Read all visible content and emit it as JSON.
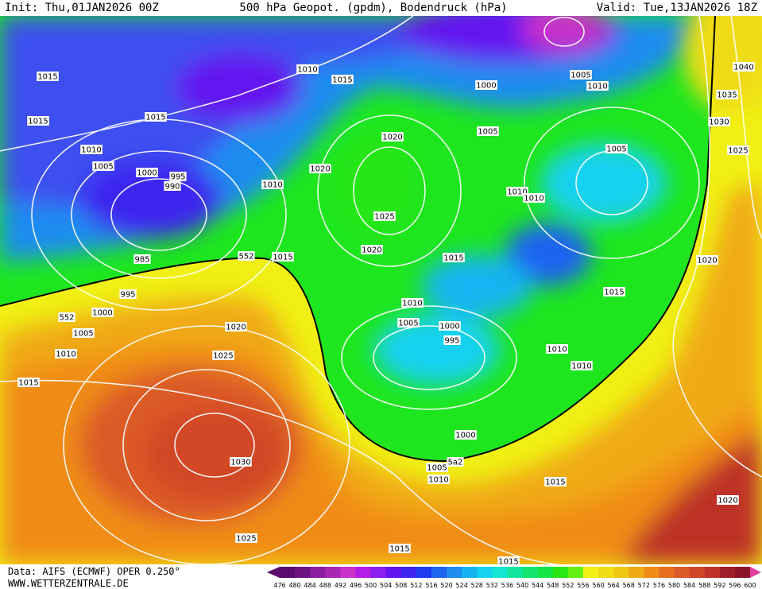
{
  "header": {
    "init": "Init: Thu,01JAN2026 00Z",
    "title": "500 hPa Geopot. (gpdm), Bodendruck (hPa)",
    "valid": "Valid: Tue,13JAN2026 18Z"
  },
  "isobar_labels": [
    "1015",
    "1015",
    "1010",
    "1015",
    "1000",
    "1005",
    "1010",
    "1040",
    "1035",
    "1030",
    "1025",
    "1015",
    "1010",
    "1005",
    "1000",
    "995",
    "990",
    "1020",
    "1005",
    "1005",
    "1020",
    "1010",
    "1010",
    "1010",
    "1025",
    "985",
    "1020",
    "1015",
    "552",
    "1015",
    "1020",
    "995",
    "1015",
    "1010",
    "552",
    "1000",
    "1005",
    "1000",
    "995",
    "1020",
    "1005",
    "1010",
    "1025",
    "1010",
    "1010",
    "1015",
    "1000",
    "1030",
    "1005",
    "5a2",
    "1010",
    "1015",
    "1020",
    "1025",
    "1015",
    "1015"
  ],
  "colorbar": {
    "labels": [
      476,
      480,
      484,
      488,
      492,
      496,
      500,
      504,
      508,
      512,
      516,
      520,
      524,
      528,
      532,
      536,
      540,
      544,
      548,
      552,
      556,
      560,
      564,
      568,
      572,
      576,
      580,
      584,
      588,
      592,
      596,
      600
    ],
    "colors": [
      "#5a0a6e",
      "#6e1482",
      "#8c1ea0",
      "#a828b4",
      "#c832c8",
      "#b41ee6",
      "#8c1ef0",
      "#6414f0",
      "#3c28f0",
      "#1e3cf0",
      "#1e64f0",
      "#1e8cf0",
      "#14b4f0",
      "#14d2f0",
      "#14e6d2",
      "#14e6a0",
      "#14e670",
      "#14e646",
      "#28e614",
      "#64f014",
      "#f0f014",
      "#f0dc14",
      "#f0c814",
      "#f0aa14",
      "#f08c14",
      "#e66e1e",
      "#dc5a28",
      "#d24628",
      "#be3228",
      "#a01e28",
      "#8c1428"
    ]
  },
  "footer": {
    "source": "Data: AIFS (ECMWF) OPER 0.250°",
    "website": "WWW.WETTERZENTRALE.DE"
  }
}
